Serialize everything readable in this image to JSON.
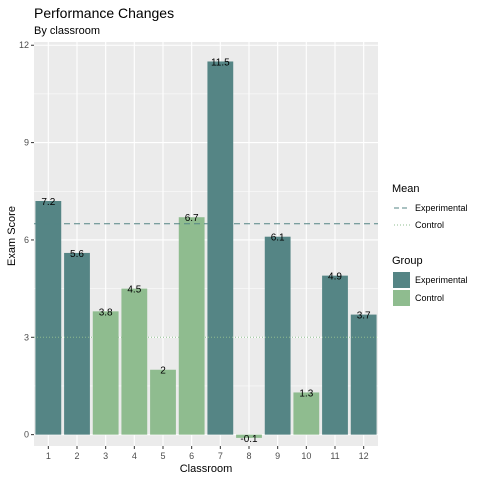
{
  "chart_data": {
    "type": "bar",
    "title": "Performance Changes",
    "subtitle": "By classroom",
    "xlabel": "Classroom",
    "ylabel": "Exam Score",
    "ylim": [
      -0.35,
      12.1
    ],
    "yticks": [
      0,
      3,
      6,
      9,
      12
    ],
    "grid": true,
    "legend_position": "right",
    "categories": [
      "1",
      "2",
      "3",
      "4",
      "5",
      "6",
      "7",
      "8",
      "9",
      "10",
      "11",
      "12"
    ],
    "values": [
      7.2,
      5.6,
      3.8,
      4.5,
      2,
      6.7,
      11.5,
      -0.1,
      6.1,
      1.3,
      4.9,
      3.7
    ],
    "labels": [
      "7.2",
      "5.6",
      "3.8",
      "4.5",
      "2",
      "6.7",
      "11.5",
      "-0.1",
      "6.1",
      "1.3",
      "4.9",
      "3.7"
    ],
    "groups": [
      "Experimental",
      "Experimental",
      "Control",
      "Control",
      "Control",
      "Control",
      "Experimental",
      "Control",
      "Experimental",
      "Control",
      "Experimental",
      "Experimental"
    ],
    "means": [
      {
        "name": "Experimental",
        "value": 6.5,
        "style": "dashed"
      },
      {
        "name": "Control",
        "value": 3.0,
        "style": "dotted"
      }
    ],
    "legend": {
      "mean_title": "Mean",
      "mean_items": [
        "Experimental",
        "Control"
      ],
      "group_title": "Group",
      "group_items": [
        "Experimental",
        "Control"
      ]
    },
    "colors": {
      "Experimental": "#558585",
      "Control": "#8fbc8f",
      "panel": "#ebebeb",
      "grid": "#ffffff"
    }
  }
}
